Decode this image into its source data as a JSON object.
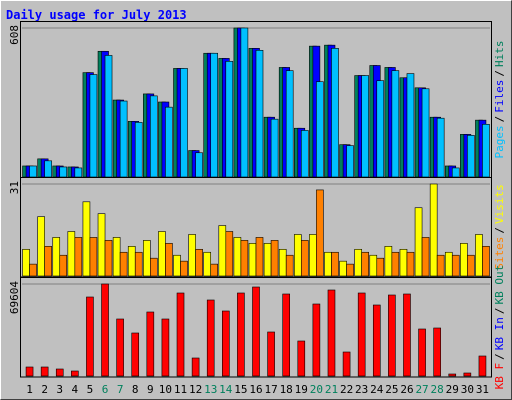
{
  "title": "Daily usage for July 2013",
  "separator": "/",
  "categories": [
    "1",
    "2",
    "3",
    "4",
    "5",
    "6",
    "7",
    "8",
    "9",
    "10",
    "11",
    "12",
    "13",
    "14",
    "15",
    "16",
    "17",
    "18",
    "19",
    "20",
    "21",
    "22",
    "23",
    "24",
    "25",
    "26",
    "27",
    "28",
    "29",
    "30",
    "31"
  ],
  "category_colors": [
    "#000000",
    "#000000",
    "#000000",
    "#000000",
    "#000000",
    "#00805c",
    "#00805c",
    "#000000",
    "#000000",
    "#000000",
    "#000000",
    "#000000",
    "#00805c",
    "#00805c",
    "#000000",
    "#000000",
    "#000000",
    "#000000",
    "#000000",
    "#00805c",
    "#00805c",
    "#000000",
    "#000000",
    "#000000",
    "#000000",
    "#000000",
    "#00805c",
    "#00805c",
    "#000000",
    "#000000",
    "#000000"
  ],
  "chart_data": [
    {
      "type": "bar",
      "ylim": [
        0,
        608
      ],
      "yticks": [
        608
      ],
      "series": [
        {
          "name": "Hits",
          "color": "#00805c",
          "values": [
            45,
            74,
            45,
            41,
            426,
            513,
            314,
            227,
            339,
            306,
            443,
            108,
            505,
            484,
            608,
            525,
            244,
            447,
            199,
            534,
            538,
            132,
            414,
            455,
            447,
            405,
            364,
            244,
            45,
            174,
            232
          ]
        },
        {
          "name": "Files",
          "color": "#0000ff",
          "values": [
            45,
            74,
            45,
            41,
            426,
            513,
            314,
            227,
            339,
            306,
            443,
            108,
            505,
            484,
            608,
            525,
            244,
            447,
            199,
            534,
            538,
            132,
            414,
            455,
            447,
            405,
            364,
            244,
            45,
            174,
            232
          ]
        },
        {
          "name": "Pages",
          "color": "#00c0ff",
          "values": [
            45,
            66,
            41,
            37,
            418,
            496,
            310,
            223,
            331,
            285,
            443,
            99,
            505,
            472,
            608,
            517,
            236,
            434,
            190,
            389,
            525,
            128,
            414,
            393,
            434,
            422,
            360,
            240,
            37,
            170,
            215
          ]
        }
      ]
    },
    {
      "type": "bar",
      "ylim": [
        0,
        31
      ],
      "yticks": [
        31
      ],
      "series": [
        {
          "name": "Visits",
          "color": "#ffff00",
          "values": [
            9,
            20,
            13,
            15,
            25,
            21,
            13,
            10,
            12,
            15,
            7,
            14,
            8,
            17,
            13,
            11,
            11,
            9,
            14,
            14,
            8,
            5,
            9,
            7,
            10,
            9,
            23,
            31,
            8,
            11,
            14
          ]
        },
        {
          "name": "Sites",
          "color": "#ff8000",
          "values": [
            4,
            10,
            7,
            13,
            13,
            12,
            8,
            8,
            6,
            11,
            5,
            9,
            4,
            15,
            12,
            13,
            12,
            7,
            12,
            29,
            8,
            4,
            8,
            6,
            8,
            8,
            13,
            7,
            7,
            7,
            10
          ]
        }
      ]
    },
    {
      "type": "bar",
      "ylim": [
        0,
        69604
      ],
      "yticks": [
        69604
      ],
      "series": [
        {
          "name": "KB Out",
          "color": "#00805c",
          "values": [
            null,
            null,
            null,
            null,
            null,
            null,
            null,
            null,
            null,
            null,
            null,
            null,
            null,
            null,
            null,
            null,
            null,
            null,
            null,
            null,
            null,
            null,
            null,
            null,
            null,
            null,
            null,
            null,
            null,
            null,
            null
          ]
        },
        {
          "name": "KB In",
          "color": "#0000ff",
          "values": [
            null,
            null,
            null,
            null,
            null,
            null,
            null,
            null,
            null,
            null,
            null,
            null,
            null,
            null,
            null,
            null,
            null,
            null,
            null,
            null,
            null,
            null,
            null,
            null,
            null,
            null,
            null,
            null,
            null,
            null,
            null
          ]
        },
        {
          "name": "KB F",
          "color": "#ff0000",
          "values": [
            6809,
            6809,
            5296,
            3783,
            59769,
            69604,
            43124,
            32532,
            48420,
            43124,
            62795,
            13618,
            57499,
            49177,
            62795,
            67334,
            33289,
            62038,
            26480,
            54472,
            65064,
            18158,
            62795,
            53716,
            61282,
            62038,
            35559,
            36315,
            1513,
            2270,
            15131
          ]
        }
      ]
    }
  ]
}
